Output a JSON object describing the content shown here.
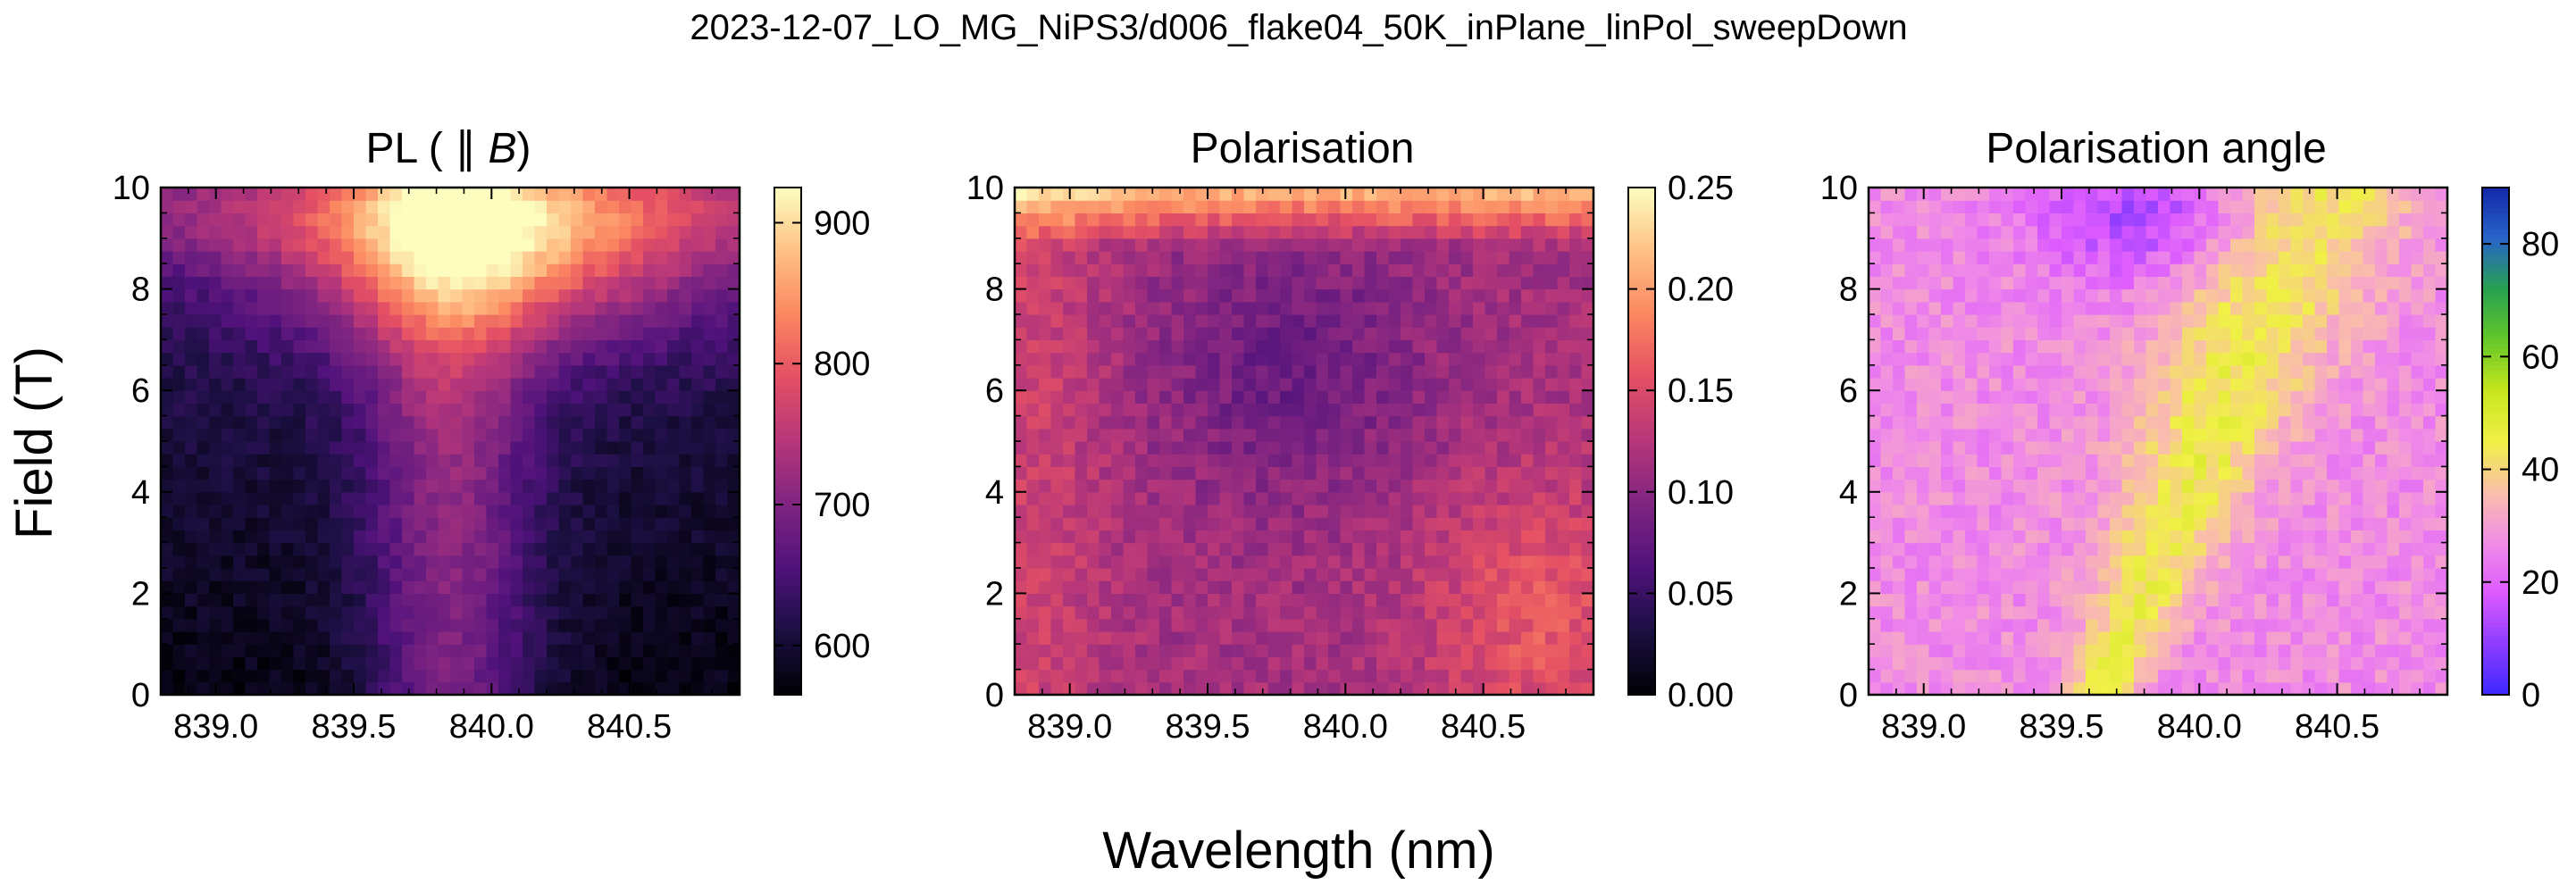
{
  "figure": {
    "suptitle": "2023-12-07_LO_MG_NiPS3/d006_flake04_50K_inPlane_linPol_sweepDown",
    "xlabel": "Wavelength (nm)",
    "ylabel": "Field (T)"
  },
  "chart_data": [
    {
      "type": "heatmap",
      "title": "PL ( ∥ B)",
      "title_parts": {
        "prefix": "PL ( ∥ ",
        "var": "B",
        "suffix": ")"
      },
      "colormap": "magma",
      "xlim": [
        838.8,
        840.9
      ],
      "ylim": [
        0,
        10
      ],
      "x_ticks": [
        839.0,
        839.5,
        840.0,
        840.5
      ],
      "x_tick_labels": [
        "839.0",
        "839.5",
        "840.0",
        "840.5"
      ],
      "y_ticks": [
        0,
        2,
        4,
        6,
        8,
        10
      ],
      "y_tick_labels": [
        "0",
        "2",
        "4",
        "6",
        "8",
        "10"
      ],
      "clim": [
        565,
        925
      ],
      "colorbar_ticks": [
        600,
        700,
        800,
        900
      ],
      "colorbar_tick_labels": [
        "600",
        "700",
        "800",
        "900"
      ],
      "grid": {
        "nx": 48,
        "ny": 40
      },
      "description_of_values": "Low (~565-620) at low field on both edges; central band near 839.7-840.0 nm rising with field; maximum ~920 near 840.0-840.1 nm at ~8.5-9.3 T"
    },
    {
      "type": "heatmap",
      "title": "Polarisation",
      "colormap": "magma",
      "xlim": [
        838.8,
        840.9
      ],
      "ylim": [
        0,
        10
      ],
      "x_ticks": [
        839.0,
        839.5,
        840.0,
        840.5
      ],
      "x_tick_labels": [
        "839.0",
        "839.5",
        "840.0",
        "840.5"
      ],
      "y_ticks": [
        0,
        2,
        4,
        6,
        8,
        10
      ],
      "y_tick_labels": [
        "0",
        "2",
        "4",
        "6",
        "8",
        "10"
      ],
      "clim": [
        0.0,
        0.25
      ],
      "colorbar_ticks": [
        0.0,
        0.05,
        0.1,
        0.15,
        0.2,
        0.25
      ],
      "colorbar_tick_labels": [
        "0.00",
        "0.05",
        "0.10",
        "0.15",
        "0.20",
        "0.25"
      ],
      "grid": {
        "nx": 48,
        "ny": 40
      },
      "description_of_values": "Mostly ~0.09-0.14; minimum ~0.07 near 839.8 nm at 6-7 T; higher ~0.15-0.17 at low field right side; strong band ~0.2-0.25 at 9.5-10 T"
    },
    {
      "type": "heatmap",
      "title": "Polarisation angle",
      "colormap": "gnuplot2_r",
      "xlim": [
        838.8,
        840.9
      ],
      "ylim": [
        0,
        10
      ],
      "x_ticks": [
        839.0,
        839.5,
        840.0,
        840.5
      ],
      "x_tick_labels": [
        "839.0",
        "839.5",
        "840.0",
        "840.5"
      ],
      "y_ticks": [
        0,
        2,
        4,
        6,
        8,
        10
      ],
      "y_tick_labels": [
        "0",
        "2",
        "4",
        "6",
        "8",
        "10"
      ],
      "clim": [
        0,
        90
      ],
      "colorbar_ticks": [
        0,
        20,
        40,
        60,
        80
      ],
      "colorbar_tick_labels": [
        "0",
        "20",
        "40",
        "60",
        "80"
      ],
      "grid": {
        "nx": 48,
        "ny": 40
      },
      "description_of_values": "Background ~25-32; V-shaped region ~40-50 from 839.65 nm at 0 T opening to 840.2 nm at 7-8 T; low ~8-12 around 839.8 nm at 9-10 T"
    }
  ]
}
